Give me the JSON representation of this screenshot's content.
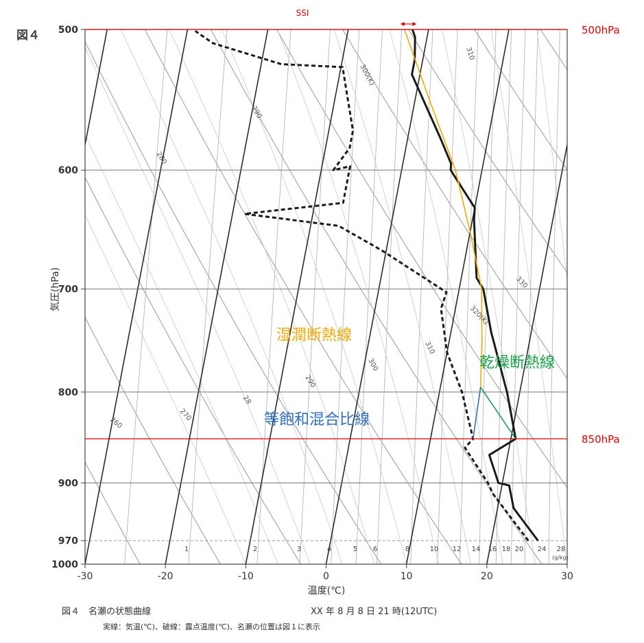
{
  "figure_label": "図４",
  "caption": {
    "title": "図４　名瀬の状態曲線",
    "datetime": "XX 年 8 月 8 日 21 時(12UTC)",
    "note": "実線：気温(℃)、破線：露点温度(℃)、名瀬の位置は図１に表示"
  },
  "chart_data": {
    "type": "line",
    "title": "名瀬の状態曲線",
    "xlabel": "温度(℃)",
    "ylabel": "気圧(hPa)",
    "xlim": [
      -30,
      30
    ],
    "ylim": [
      1000,
      500
    ],
    "yscale": "log",
    "skew_per_decade_log_p": 42.35,
    "x_ticks": [
      "-30",
      "-20",
      "-10",
      "0",
      "10",
      "20",
      "30"
    ],
    "y_ticks": [
      "500",
      "600",
      "700",
      "800",
      "900",
      "970",
      "1000"
    ],
    "grid": true,
    "series": [
      {
        "name": "気温(℃)",
        "style": "solid",
        "points": [
          [
            25.8,
            970
          ],
          [
            22.0,
            930
          ],
          [
            20.9,
            903
          ],
          [
            19.5,
            900
          ],
          [
            17.7,
            868
          ],
          [
            20.6,
            850
          ],
          [
            18.4,
            800
          ],
          [
            15.0,
            740
          ],
          [
            13.0,
            700
          ],
          [
            11.9,
            690
          ],
          [
            10.2,
            640
          ],
          [
            10.0,
            630
          ],
          [
            6.1,
            600
          ],
          [
            6.0,
            595
          ],
          [
            4.0,
            575
          ],
          [
            -1.0,
            530
          ],
          [
            -1.0,
            520
          ],
          [
            -1.5,
            505
          ],
          [
            -2.0,
            500
          ]
        ]
      },
      {
        "name": "露点温度(℃)",
        "style": "dashed",
        "points": [
          [
            24.6,
            970
          ],
          [
            19.1,
            913
          ],
          [
            18.2,
            900
          ],
          [
            17.2,
            889
          ],
          [
            14.5,
            860
          ],
          [
            15.3,
            850
          ],
          [
            12.8,
            800
          ],
          [
            10.0,
            760
          ],
          [
            8.2,
            718
          ],
          [
            8.5,
            703
          ],
          [
            -0.5,
            666
          ],
          [
            -6.5,
            645
          ],
          [
            -18.5,
            635
          ],
          [
            -6.5,
            626
          ],
          [
            -6.5,
            597
          ],
          [
            -8.5,
            600
          ],
          [
            -7.0,
            583
          ],
          [
            -7.0,
            570
          ],
          [
            -9.8,
            525
          ],
          [
            -17.5,
            523
          ],
          [
            -26.5,
            509
          ],
          [
            -29.0,
            501
          ]
        ]
      },
      {
        "name": "湿潤断熱線",
        "style": "orange",
        "points": [
          [
            -3.0,
            500
          ],
          [
            2.0,
            550
          ],
          [
            6.7,
            600
          ],
          [
            10.0,
            650
          ],
          [
            12.8,
            700
          ],
          [
            14.1,
            750
          ],
          [
            15.0,
            795
          ]
        ]
      },
      {
        "name": "乾燥断熱線",
        "style": "green",
        "points": [
          [
            20.6,
            850
          ],
          [
            15.0,
            795
          ]
        ]
      },
      {
        "name": "等飽和混合比線",
        "style": "blue",
        "points": [
          [
            15.3,
            850
          ],
          [
            15.0,
            795
          ]
        ]
      }
    ],
    "reference_lines": [
      {
        "label": "500hPa",
        "p": 500
      },
      {
        "label": "850hPa",
        "p": 850
      },
      {
        "p": 970,
        "style": "dashed"
      }
    ],
    "annotations": {
      "ssi": "SSI",
      "moist_adiabat": "湿潤断熱線",
      "dry_adiabat": "乾燥断熱線",
      "mixing_ratio": "等飽和混合比線"
    },
    "dry_adiabat_labels": [
      "260",
      "270",
      "280",
      "290",
      "300(K)",
      "310"
    ],
    "dry_adiabat_labels_lower": [
      "260",
      "270",
      "28",
      "290",
      "300",
      "310",
      "320(K)",
      "330"
    ],
    "mixing_ratio_labels": [
      "1",
      "2",
      "3",
      "4",
      "5",
      "6",
      "8",
      "10",
      "12",
      "14",
      "16",
      "18",
      "20",
      "24",
      "28"
    ],
    "mixing_ratio_unit": "(g/kg)"
  },
  "colors": {
    "reference": "#e00000",
    "moist": "#f5a800",
    "dry": "#1aa34a",
    "mixing": "#2f6fbd",
    "grid": "#9a9a9a"
  }
}
